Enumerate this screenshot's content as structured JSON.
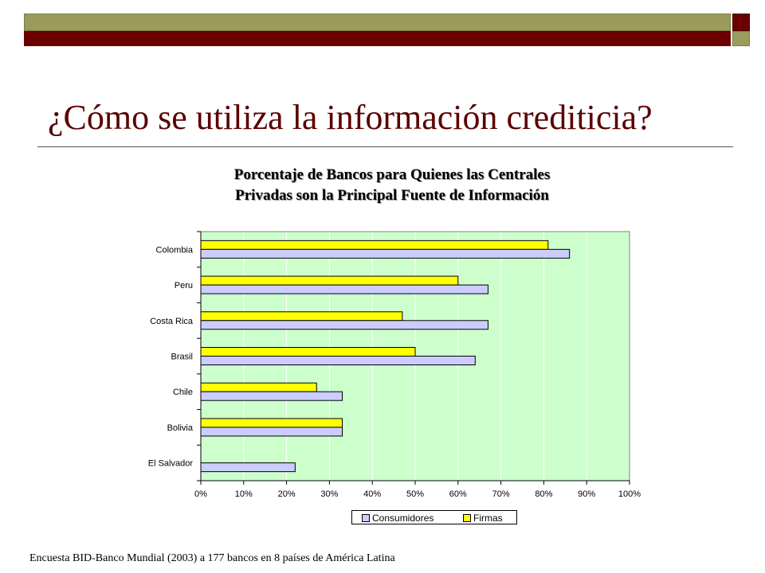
{
  "slide": {
    "title": "¿Cómo se utiliza la información crediticia?",
    "footnote": "Encuesta BID-Banco Mundial (2003) a 177 bancos en 8 países de América Latina"
  },
  "colors": {
    "band_olive": "#9b9b5c",
    "band_maroon": "#6b0000",
    "plot_background": "#ccffcc",
    "consumidores": "#ccccff",
    "firmas": "#ffff00"
  },
  "chart_data": {
    "type": "bar",
    "orientation": "horizontal",
    "title_lines": [
      "Porcentaje de Bancos para Quienes las Centrales",
      "Privadas son la Principal Fuente de Información"
    ],
    "categories": [
      "Colombia",
      "Peru",
      "Costa Rica",
      "Brasil",
      "Chile",
      "Bolivia",
      "El Salvador"
    ],
    "series": [
      {
        "name": "Firmas",
        "color": "#ffff00",
        "values": [
          0.81,
          0.6,
          0.47,
          0.5,
          0.27,
          0.33,
          0.0
        ]
      },
      {
        "name": "Consumidores",
        "color": "#ccccff",
        "values": [
          0.86,
          0.67,
          0.67,
          0.64,
          0.33,
          0.33,
          0.22
        ]
      }
    ],
    "x_ticks": [
      "0%",
      "10%",
      "20%",
      "30%",
      "40%",
      "50%",
      "60%",
      "70%",
      "80%",
      "90%",
      "100%"
    ],
    "xlim": [
      0,
      1
    ],
    "grid": "vertical",
    "legend": {
      "position": "bottom",
      "entries": [
        {
          "label": "Consumidores",
          "color": "#ccccff"
        },
        {
          "label": "Firmas",
          "color": "#ffff00"
        }
      ]
    }
  }
}
